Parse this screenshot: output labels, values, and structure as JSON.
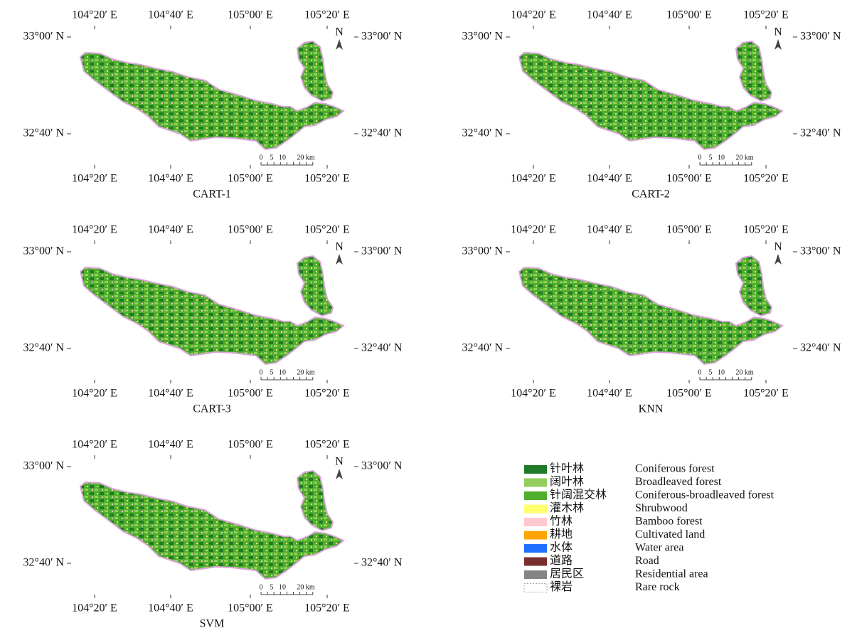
{
  "panels": [
    {
      "caption": "CART-1",
      "top_lon_labels": [
        "104°20′ E",
        "104°40′ E",
        "105°00′ E",
        "105°20′ E"
      ],
      "bottom_lon_labels": [
        "104°20′ E",
        "104°40′ E",
        "105°00′ E",
        "105°20′ E"
      ],
      "left_lat_labels": [
        "33°00′ N",
        "32°40′ N"
      ],
      "right_lat_labels": [
        "33°00′ N",
        "32°40′ N"
      ],
      "north": "N",
      "scale_labels": [
        "0",
        "5",
        "10",
        "20 km"
      ]
    },
    {
      "caption": "CART-2",
      "top_lon_labels": [
        "104°20′ E",
        "104°40′ E",
        "105°00′ E",
        "105°20′ E"
      ],
      "bottom_lon_labels": [
        "104°20′ E",
        "104°40′ E",
        "105°00′ E",
        "105°20′ E"
      ],
      "left_lat_labels": [
        "33°00′ N",
        "32°40′ N"
      ],
      "right_lat_labels": [
        "33°00′ N",
        "32°40′ N"
      ],
      "north": "N",
      "scale_labels": [
        "0",
        "5",
        "10",
        "20 km"
      ]
    },
    {
      "caption": "CART-3",
      "top_lon_labels": [
        "104°20′ E",
        "104°40′ E",
        "105°00′ E",
        "105°20′ E"
      ],
      "bottom_lon_labels": [
        "104°20′ E",
        "104°40′ E",
        "105°00′ E",
        "105°20′ E"
      ],
      "left_lat_labels": [
        "33°00′ N",
        "32°40′ N"
      ],
      "right_lat_labels": [
        "33°00′ N",
        "32°40′ N"
      ],
      "north": "N",
      "scale_labels": [
        "0",
        "5",
        "10",
        "20 km"
      ]
    },
    {
      "caption": "KNN",
      "top_lon_labels": [
        "104°20′ E",
        "104°40′ E",
        "105°00′ E",
        "105°20′ E"
      ],
      "bottom_lon_labels": [
        "104°20′ E",
        "104°40′ E",
        "105°00′ E",
        "105°20′ E"
      ],
      "left_lat_labels": [
        "33°00′ N",
        "32°40′ N"
      ],
      "right_lat_labels": [
        "33°00′ N",
        "32°40′ N"
      ],
      "north": "N",
      "scale_labels": [
        "0",
        "5",
        "10",
        "20 km"
      ]
    },
    {
      "caption": "SVM",
      "top_lon_labels": [
        "104°20′ E",
        "104°40′ E",
        "105°00′ E",
        "105°20′ E"
      ],
      "bottom_lon_labels": [
        "104°20′ E",
        "104°40′ E",
        "105°00′ E",
        "105°20′ E"
      ],
      "left_lat_labels": [
        "33°00′ N",
        "32°40′ N"
      ],
      "right_lat_labels": [
        "33°00′ N",
        "32°40′ N"
      ],
      "north": "N",
      "scale_labels": [
        "0",
        "5",
        "10",
        "20 km"
      ]
    }
  ],
  "legend": [
    {
      "zh": "针叶林",
      "en": "Coniferous forest",
      "color": "#1f7a2a"
    },
    {
      "zh": "阔叶林",
      "en": "Broadleaved forest",
      "color": "#93cf5c"
    },
    {
      "zh": "针阔混交林",
      "en": "Coniferous-broadleaved forest",
      "color": "#4fae2c"
    },
    {
      "zh": "灌木林",
      "en": "Shrubwood",
      "color": "#ffff70"
    },
    {
      "zh": "竹林",
      "en": "Bamboo forest",
      "color": "#ffc9cf"
    },
    {
      "zh": "耕地",
      "en": "Cultivated land",
      "color": "#ffa400"
    },
    {
      "zh": "水体",
      "en": "Water area",
      "color": "#1f70ff"
    },
    {
      "zh": "道路",
      "en": "Road",
      "color": "#7a2e2e"
    },
    {
      "zh": "居民区",
      "en": "Residential area",
      "color": "#858585"
    },
    {
      "zh": "裸岩",
      "en": "Rare rock",
      "color": "#ffffff"
    }
  ]
}
